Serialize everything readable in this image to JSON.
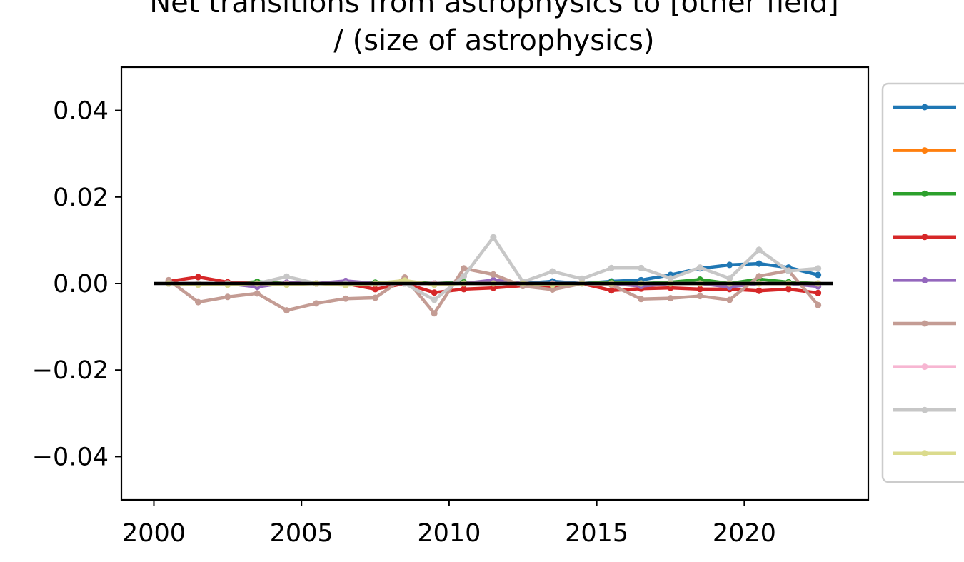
{
  "chart_data": {
    "type": "line",
    "title_line1": "Net transitions from astrophysics to [other field]",
    "title_line2": "/ (size of astrophysics)",
    "xlabel": "",
    "ylabel": "",
    "xlim": [
      1998.9,
      2024.2
    ],
    "ylim": [
      -0.05,
      0.05
    ],
    "x_ticks": [
      2000,
      2005,
      2010,
      2015,
      2020
    ],
    "x_tick_labels": [
      "2000",
      "2005",
      "2010",
      "2015",
      "2020"
    ],
    "y_ticks": [
      0.04,
      0.02,
      0.0,
      -0.02,
      -0.04
    ],
    "y_tick_labels": [
      "0.04",
      "0.02",
      "0.00",
      "−0.02",
      "−0.04"
    ],
    "grid": false,
    "legend_position": "right, outside plot (entries clipped, labels not visible)",
    "x": [
      2000.5,
      2001.5,
      2002.5,
      2003.5,
      2004.5,
      2005.5,
      2006.5,
      2007.5,
      2008.5,
      2009.5,
      2010.5,
      2011.5,
      2012.5,
      2013.5,
      2014.5,
      2015.5,
      2016.5,
      2017.5,
      2018.5,
      2019.5,
      2020.5,
      2021.5,
      2022.5
    ],
    "reference_line": {
      "y": 0.0,
      "x_range": [
        2000,
        2023
      ],
      "color": "#000000"
    },
    "series": [
      {
        "color": "#1f77b4",
        "values": [
          0.0,
          0.0,
          0.0,
          0.0,
          0.0,
          0.0,
          0.0,
          0.0,
          0.0,
          0.0,
          0.0,
          0.0,
          0.0,
          0.0005,
          0.0,
          0.0005,
          0.0008,
          0.002,
          0.0035,
          0.0043,
          0.0046,
          0.0037,
          0.002
        ]
      },
      {
        "color": "#ff7f0e",
        "values": [
          0.0,
          0.0,
          0.0,
          0.0,
          0.0,
          0.0,
          0.0,
          0.0,
          0.0,
          0.0,
          0.0,
          0.0,
          0.0,
          0.0,
          0.0,
          0.0,
          0.0,
          0.0,
          0.0,
          0.0,
          0.0,
          0.0,
          0.0
        ]
      },
      {
        "color": "#2ca02c",
        "values": [
          0.0,
          0.0,
          0.0,
          0.0004,
          0.0,
          0.0,
          0.0,
          0.0002,
          0.0004,
          0.0,
          0.0003,
          0.0003,
          0.0,
          0.0,
          0.0,
          0.0003,
          0.0,
          0.0003,
          0.0009,
          0.0,
          0.001,
          0.0003,
          0.0
        ]
      },
      {
        "color": "#d62728",
        "values": [
          0.0005,
          0.0015,
          0.0003,
          0.0,
          0.0,
          0.0,
          0.0,
          -0.0013,
          0.0,
          -0.0021,
          -0.0013,
          -0.001,
          -0.0005,
          -0.0007,
          0.0,
          -0.0016,
          -0.0012,
          -0.001,
          -0.0013,
          -0.0013,
          -0.0017,
          -0.0013,
          -0.0022
        ]
      },
      {
        "color": "#9467bd",
        "values": [
          0.0,
          0.0,
          0.0,
          -0.0008,
          0.0002,
          0.0,
          0.0006,
          0.0,
          0.0,
          0.0,
          0.0,
          0.0008,
          0.0,
          0.0,
          0.0,
          0.0,
          -0.0006,
          0.0,
          0.0,
          -0.0008,
          0.0,
          0.0,
          -0.0007
        ]
      },
      {
        "color": "#c49c94",
        "values": [
          0.0008,
          -0.0043,
          -0.0031,
          -0.0023,
          -0.0062,
          -0.0046,
          -0.0035,
          -0.0033,
          0.0014,
          -0.0069,
          0.0035,
          0.0021,
          -0.0006,
          -0.0014,
          0.0,
          -0.0003,
          -0.0036,
          -0.0034,
          -0.0029,
          -0.0038,
          0.0017,
          0.003,
          -0.005
        ]
      },
      {
        "color": "#f7b6d2",
        "values": [
          0.0,
          0.0,
          0.0,
          0.0,
          0.0,
          0.0,
          0.0,
          0.0,
          0.0,
          0.0,
          0.0,
          0.0,
          0.0,
          0.0,
          0.0,
          0.0,
          0.0,
          0.0,
          0.0,
          0.0,
          0.0,
          0.0,
          0.0
        ]
      },
      {
        "color": "#c7c7c7",
        "values": [
          0.0,
          0.0,
          0.0,
          0.0,
          0.0016,
          0.0,
          0.0,
          0.0,
          0.0,
          -0.0038,
          0.0017,
          0.0107,
          0.0004,
          0.0028,
          0.0011,
          0.0036,
          0.0036,
          0.0012,
          0.0037,
          0.0012,
          0.0078,
          0.0029,
          0.0035
        ]
      },
      {
        "color": "#dbdb8d",
        "values": [
          0.0,
          -0.0003,
          -0.0003,
          0.0,
          -0.0003,
          0.0,
          -0.0004,
          0.0,
          0.0007,
          -0.0003,
          0.0,
          0.0,
          0.0,
          -0.0003,
          0.0,
          0.0,
          0.0,
          0.0,
          0.0,
          0.0,
          0.0,
          0.0,
          0.0
        ]
      }
    ]
  }
}
